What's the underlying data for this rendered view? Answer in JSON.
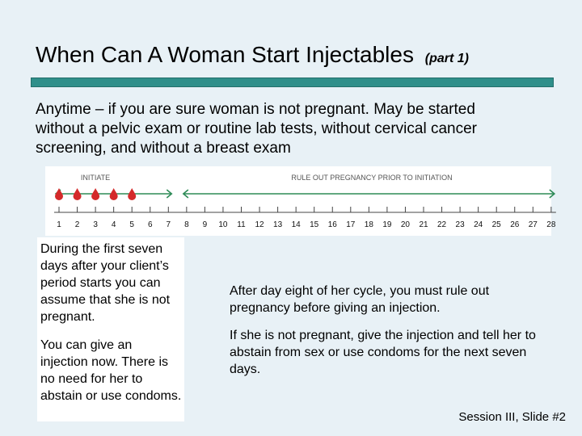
{
  "title": {
    "main": "When Can A Woman Start Injectables",
    "sub": "(part 1)"
  },
  "intro": "Anytime – if you are sure woman is not pregnant. May be started without a pelvic exam or routine lab tests, without cervical cancer screening, and without a breast exam",
  "diagram": {
    "label_initiate": "INITIATE",
    "label_rule_out": "RULE OUT PREGNANCY PRIOR TO INITIATION",
    "days": [
      "1",
      "2",
      "3",
      "4",
      "5",
      "6",
      "7",
      "8",
      "9",
      "10",
      "11",
      "12",
      "13",
      "14",
      "15",
      "16",
      "17",
      "18",
      "19",
      "20",
      "21",
      "22",
      "23",
      "24",
      "25",
      "26",
      "27",
      "28"
    ],
    "period_days": 5,
    "colors": {
      "line": "#2e8b57",
      "drop": "#d42a2a",
      "text": "#555555"
    }
  },
  "left": {
    "p1": "During the first seven days after your client’s period starts you can assume that she is not pregnant.",
    "p2": "You can give an injection now. There is no need for her to abstain or use condoms."
  },
  "right": {
    "p1": "After day eight of her cycle, you must rule out pregnancy before giving an injection.",
    "p2": "If she is not pregnant, give the injection and tell her to abstain from sex or use condoms for the next seven days."
  },
  "footer": "Session III, Slide #2"
}
